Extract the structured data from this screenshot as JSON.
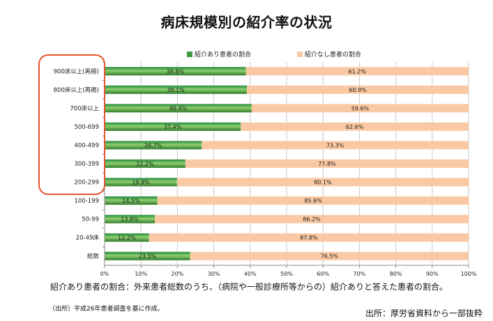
{
  "title": "病床規模別の紹介率の状況",
  "chart_data": {
    "type": "bar",
    "orientation": "horizontal",
    "stacked": true,
    "categories": [
      "900床以上(再掲)",
      "800床以上(再掲)",
      "700床以上",
      "500-699",
      "400-499",
      "300-399",
      "200-299",
      "100-199",
      "50-99",
      "20-49床",
      "総数"
    ],
    "series": [
      {
        "name": "紹介あり患者の割合",
        "color": "#3f9b3f",
        "values": [
          38.8,
          39.1,
          40.4,
          37.4,
          26.7,
          22.2,
          19.9,
          14.5,
          13.8,
          12.2,
          23.5
        ],
        "labels": [
          "38.8%",
          "39.1%",
          "40.4%",
          "37.4%",
          "26.7%",
          "22.2%",
          "19.9%",
          "14.5%",
          "13.8%",
          "12.2%",
          "23.5%"
        ]
      },
      {
        "name": "紹介なし患者の割合",
        "color": "#fac9a3",
        "values": [
          61.2,
          60.9,
          59.6,
          62.6,
          73.3,
          77.8,
          80.1,
          85.6,
          86.2,
          87.8,
          76.5
        ],
        "labels": [
          "61.2%",
          "60.9%",
          "59.6%",
          "62.6%",
          "73.3%",
          "77.8%",
          "80.1%",
          "85.6%",
          "86.2%",
          "87.8%",
          "76.5%"
        ]
      }
    ],
    "xlim": [
      0,
      100
    ],
    "xticks": [
      "0%",
      "10%",
      "20%",
      "30%",
      "40%",
      "50%",
      "60%",
      "70%",
      "80%",
      "90%",
      "100%"
    ],
    "grid": true,
    "legend": "top",
    "highlighted_categories": [
      "900床以上(再掲)",
      "800床以上(再掲)",
      "700床以上",
      "500-699",
      "400-499",
      "300-399",
      "200-299"
    ],
    "highlight_color": "#e0562a"
  },
  "note": "紹介あり患者の割合：外来患者総数のうち、（病院や一般診療所等からの）紹介ありと答えた患者の割合。",
  "source_left": "（出所）平成26年患者調査を基に作成。",
  "source_right": "出所：厚労省資料から一部抜粋"
}
